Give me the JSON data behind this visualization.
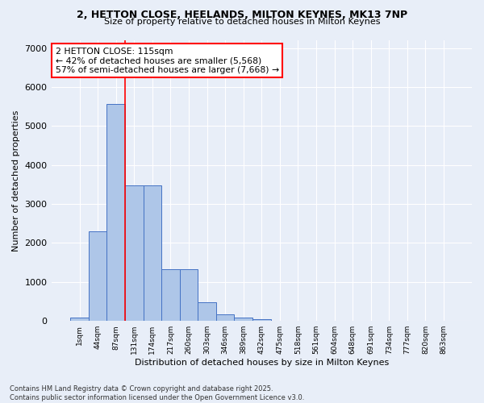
{
  "title_line1": "2, HETTON CLOSE, HEELANDS, MILTON KEYNES, MK13 7NP",
  "title_line2": "Size of property relative to detached houses in Milton Keynes",
  "xlabel": "Distribution of detached houses by size in Milton Keynes",
  "ylabel": "Number of detached properties",
  "categories": [
    "1sqm",
    "44sqm",
    "87sqm",
    "131sqm",
    "174sqm",
    "217sqm",
    "260sqm",
    "303sqm",
    "346sqm",
    "389sqm",
    "432sqm",
    "475sqm",
    "518sqm",
    "561sqm",
    "604sqm",
    "648sqm",
    "691sqm",
    "734sqm",
    "777sqm",
    "820sqm",
    "863sqm"
  ],
  "values": [
    80,
    2300,
    5560,
    3470,
    3470,
    1330,
    1330,
    470,
    165,
    80,
    50,
    0,
    0,
    0,
    0,
    0,
    0,
    0,
    0,
    0,
    0
  ],
  "bar_color": "#aec6e8",
  "bar_edge_color": "#4472c4",
  "background_color": "#e8eef8",
  "grid_color": "#ffffff",
  "vline_color": "red",
  "annotation_text": "2 HETTON CLOSE: 115sqm\n← 42% of detached houses are smaller (5,568)\n57% of semi-detached houses are larger (7,668) →",
  "annotation_box_color": "white",
  "annotation_box_edge": "red",
  "ylim": [
    0,
    7200
  ],
  "yticks": [
    0,
    1000,
    2000,
    3000,
    4000,
    5000,
    6000,
    7000
  ],
  "footer_line1": "Contains HM Land Registry data © Crown copyright and database right 2025.",
  "footer_line2": "Contains public sector information licensed under the Open Government Licence v3.0."
}
